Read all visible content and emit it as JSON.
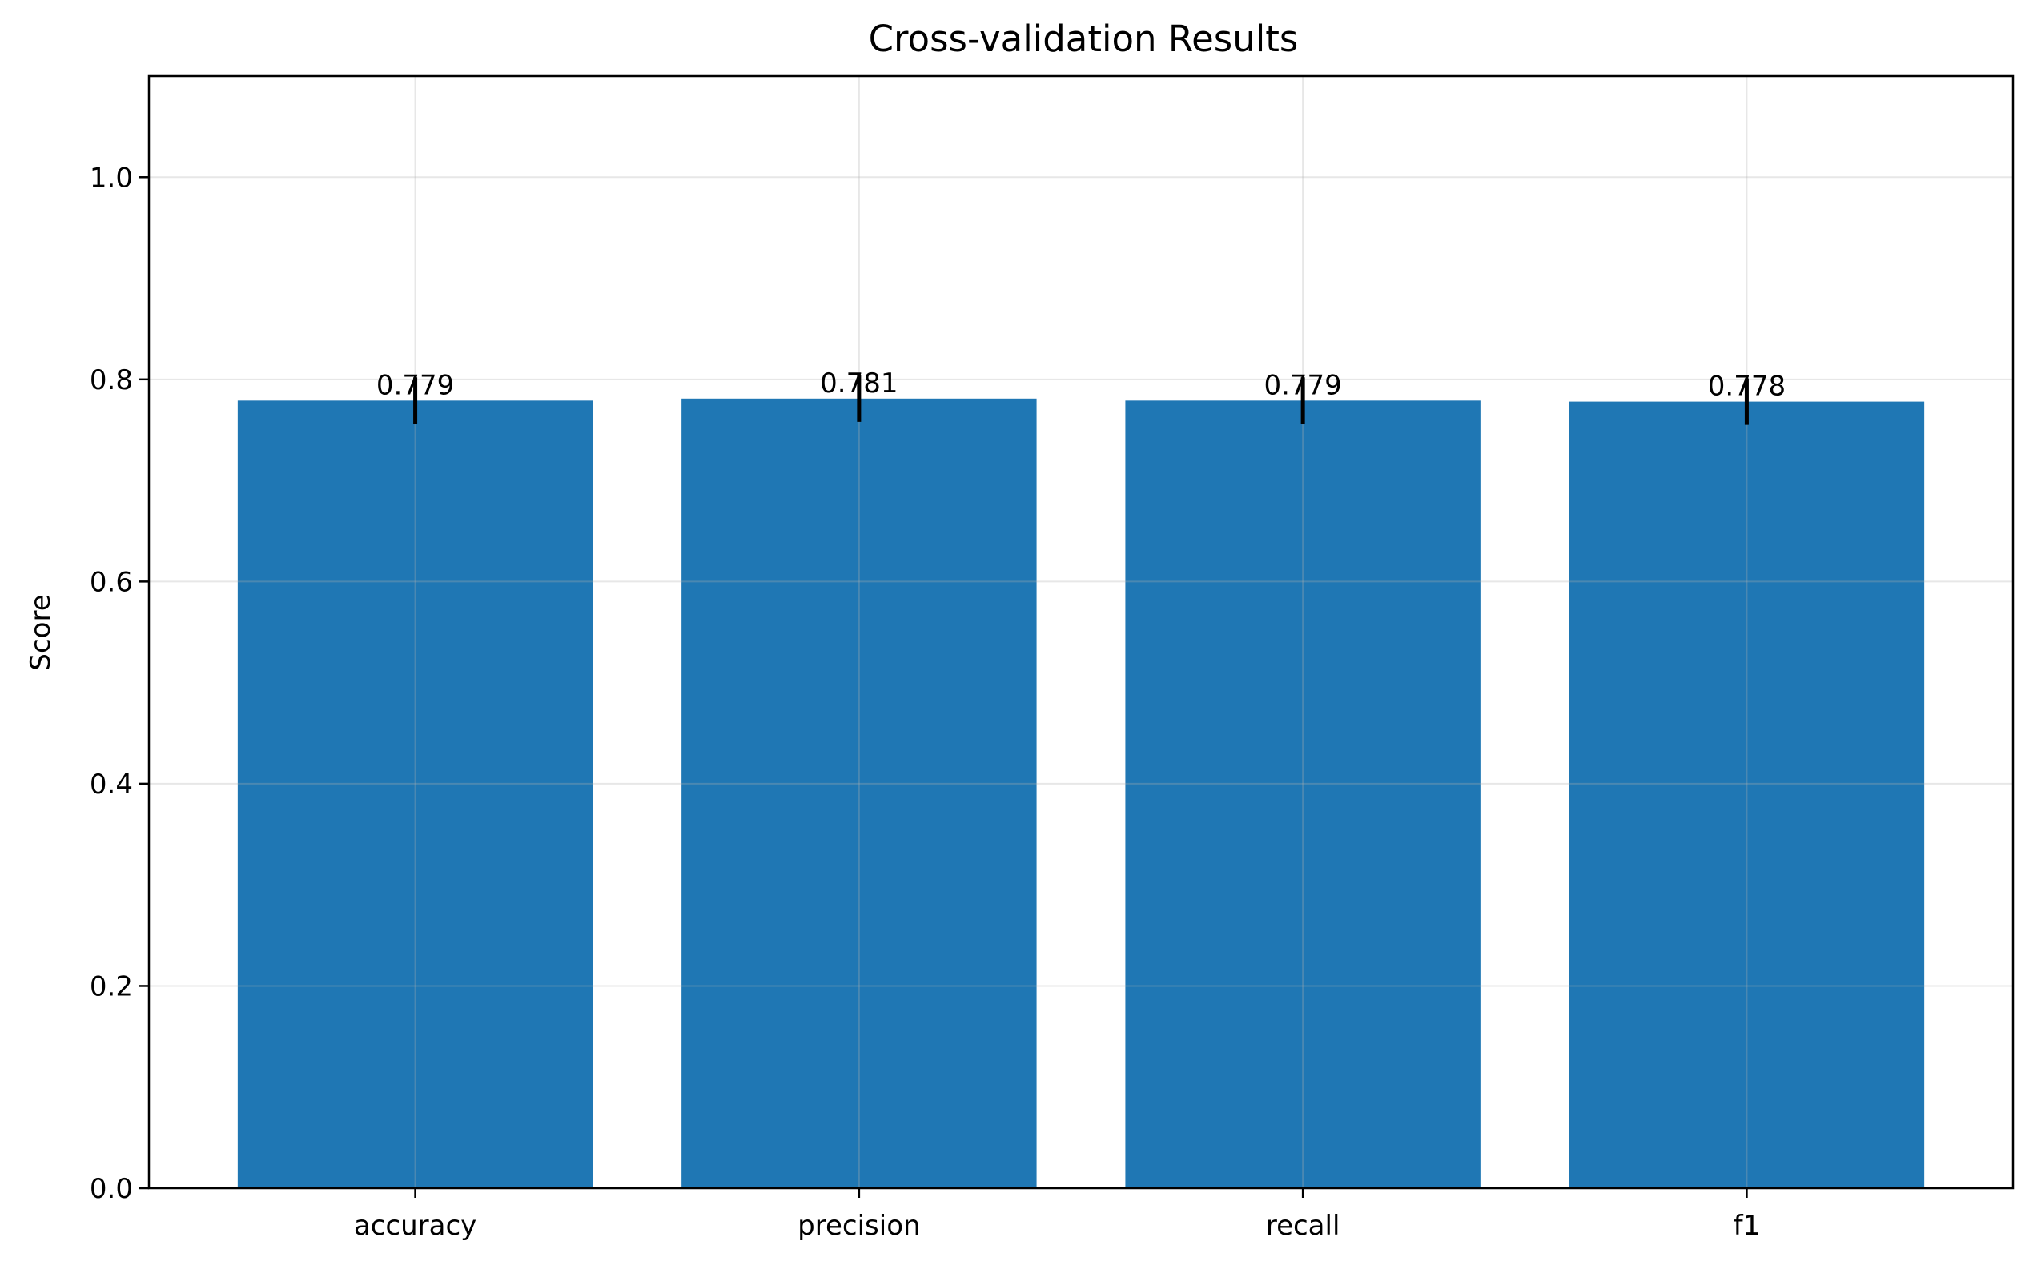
{
  "chart_data": {
    "type": "bar",
    "title": "Cross-validation Results",
    "xlabel": "",
    "ylabel": "Score",
    "categories": [
      "accuracy",
      "precision",
      "recall",
      "f1"
    ],
    "values": [
      0.779,
      0.781,
      0.779,
      0.778
    ],
    "value_labels": [
      "0.779",
      "0.781",
      "0.779",
      "0.778"
    ],
    "error": [
      0.023,
      0.023,
      0.023,
      0.023
    ],
    "ylim": [
      0,
      1.1
    ],
    "yticks": [
      0.0,
      0.2,
      0.4,
      0.6,
      0.8,
      1.0
    ],
    "ytick_labels": [
      "0.0",
      "0.2",
      "0.4",
      "0.6",
      "0.8",
      "1.0"
    ],
    "grid": true,
    "colors": {
      "bar": "#1f77b4",
      "errorbar": "#000000",
      "grid": "#e5e5e5",
      "axis": "#000000"
    }
  }
}
